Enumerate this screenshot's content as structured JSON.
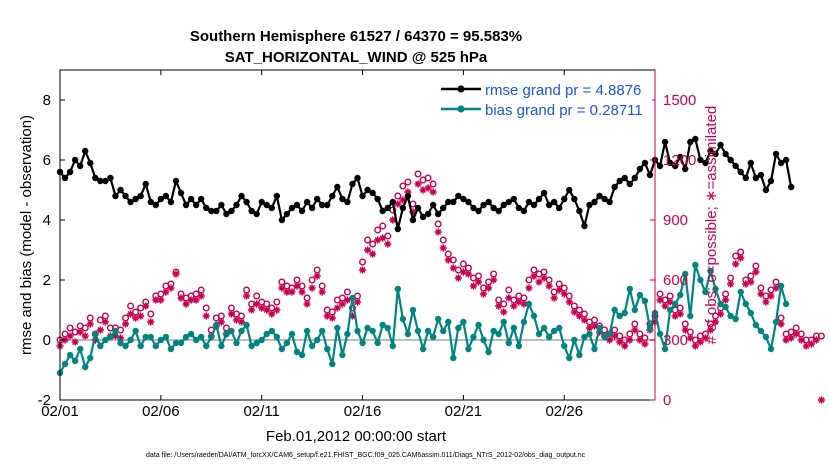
{
  "chart_data": {
    "type": "line",
    "title_line1": "Southern Hemisphere 61527 / 64370 = 95.583%",
    "title_line2": "SAT_HORIZONTAL_WIND @ 525 hPa",
    "xlabel": "Feb.01,2012 00:00:00 start",
    "ylabel_left": "rmse and bias (model - observation)",
    "ylabel_right": "# of obs: o=possible; ∗=assimilated",
    "xlim": [
      0,
      29.5
    ],
    "ylim_left": [
      -2,
      9
    ],
    "ylim_right": [
      0,
      1650
    ],
    "x_ticks": [
      {
        "v": 0,
        "label": "02/01"
      },
      {
        "v": 5,
        "label": "02/06"
      },
      {
        "v": 10,
        "label": "02/11"
      },
      {
        "v": 15,
        "label": "02/16"
      },
      {
        "v": 20,
        "label": "02/21"
      },
      {
        "v": 25,
        "label": "02/26"
      }
    ],
    "yticks_left": [
      {
        "v": -2,
        "label": "-2"
      },
      {
        "v": 0,
        "label": "0"
      },
      {
        "v": 2,
        "label": "2"
      },
      {
        "v": 4,
        "label": "4"
      },
      {
        "v": 6,
        "label": "6"
      },
      {
        "v": 8,
        "label": "8"
      }
    ],
    "yticks_right": [
      {
        "v": 0,
        "label": "0"
      },
      {
        "v": 300,
        "label": "300"
      },
      {
        "v": 600,
        "label": "600"
      },
      {
        "v": 900,
        "label": "900"
      },
      {
        "v": 1200,
        "label": "1200"
      },
      {
        "v": 1500,
        "label": "1500"
      }
    ],
    "zero_line": 0,
    "colors": {
      "rmse": "#000000",
      "bias": "#00847f",
      "obs": "#c8004e",
      "legend_text": "#1a55e0",
      "zero": "#bcbcbc"
    },
    "series": [
      {
        "name": "rmse grand pr = 4.8876",
        "axis": "left",
        "x_start": 0,
        "x_step": 0.25,
        "values": [
          5.6,
          5.4,
          5.6,
          6.0,
          5.8,
          6.3,
          5.9,
          5.4,
          5.3,
          5.3,
          5.4,
          4.8,
          5.0,
          4.8,
          4.6,
          4.7,
          4.8,
          5.2,
          4.6,
          4.5,
          4.7,
          4.8,
          4.6,
          5.3,
          4.9,
          4.5,
          4.7,
          4.5,
          4.7,
          4.4,
          4.3,
          4.3,
          4.5,
          4.2,
          4.3,
          4.5,
          4.8,
          4.6,
          4.3,
          4.2,
          4.6,
          4.5,
          4.4,
          4.8,
          4.0,
          4.2,
          4.4,
          4.5,
          4.3,
          4.6,
          4.4,
          4.7,
          4.5,
          4.5,
          4.8,
          5.1,
          4.7,
          4.6,
          5.2,
          5.4,
          4.8,
          5.0,
          4.9,
          4.7,
          4.3,
          4.4,
          4.6,
          3.7,
          4.4,
          4.8,
          4.0,
          4.4,
          4.1,
          4.2,
          4.5,
          4.2,
          4.4,
          4.6,
          4.6,
          4.8,
          4.7,
          4.6,
          4.4,
          4.3,
          4.5,
          4.6,
          4.4,
          4.3,
          4.5,
          4.6,
          4.7,
          4.4,
          4.3,
          4.6,
          4.5,
          4.7,
          4.9,
          4.5,
          4.6,
          4.4,
          4.7,
          5.0,
          4.7,
          4.3,
          3.8,
          4.5,
          4.6,
          4.8,
          4.7,
          4.6,
          5.1,
          5.3,
          5.4,
          5.2,
          5.4,
          5.7,
          5.9,
          5.5,
          6.0,
          5.8,
          6.6,
          5.9,
          5.8,
          6.1,
          5.7,
          6.6,
          6.7,
          6.0,
          5.9,
          6.3,
          6.2,
          6.5,
          6.2,
          6.0,
          5.8,
          5.6,
          5.4,
          5.9,
          5.4,
          5.5,
          5.0,
          5.3,
          6.2,
          5.9,
          6.0,
          5.1
        ]
      },
      {
        "name": "bias grand pr = 0.28711",
        "axis": "left",
        "x_start": 0,
        "x_step": 0.25,
        "values": [
          -1.1,
          -0.8,
          -0.5,
          -0.7,
          -0.3,
          -0.9,
          -0.6,
          0.2,
          -0.2,
          0.0,
          0.1,
          0.3,
          -0.1,
          -0.2,
          0.0,
          0.3,
          -0.2,
          0.1,
          0.1,
          -0.2,
          0.0,
          0.1,
          -0.3,
          -0.1,
          -0.1,
          0.1,
          0.2,
          0.0,
          0.1,
          -0.2,
          0.1,
          0.5,
          -0.2,
          0.2,
          0.3,
          -0.1,
          0.3,
          0.5,
          -0.2,
          -0.1,
          0.0,
          0.2,
          0.3,
          0.1,
          -0.3,
          -0.1,
          0.2,
          -0.4,
          -0.5,
          0.3,
          -0.2,
          0.0,
          0.3,
          -0.3,
          -0.8,
          0.4,
          -0.5,
          0.2,
          1.4,
          0.3,
          -0.1,
          0.4,
          0.3,
          -0.1,
          0.5,
          0.4,
          -0.2,
          1.7,
          0.7,
          0.2,
          1.0,
          0.3,
          -0.3,
          0.3,
          0.1,
          0.7,
          0.3,
          0.6,
          -0.6,
          0.4,
          0.6,
          -0.3,
          0.1,
          0.5,
          0.0,
          -0.4,
          0.3,
          0.2,
          0.6,
          -0.1,
          0.4,
          -0.2,
          0.6,
          1.2,
          0.8,
          0.2,
          0.4,
          0.1,
          0.3,
          0.4,
          -0.2,
          -0.6,
          0.0,
          -0.5,
          0.1,
          0.2,
          -0.3,
          0.4,
          0.1,
          0.2,
          1.0,
          0.8,
          0.9,
          1.7,
          1.0,
          1.5,
          1.3,
          0.4,
          0.9,
          0.2,
          -0.3,
          1.0,
          1.2,
          1.5,
          2.2,
          0.8,
          2.5,
          2.0,
          1.6,
          2.3,
          1.7,
          1.2,
          1.1,
          0.8,
          0.7,
          1.6,
          1.2,
          0.9,
          0.5,
          0.3,
          0.1,
          -0.3,
          0.6,
          1.8,
          1.2
        ]
      },
      {
        "name": "possible",
        "axis": "right",
        "marker": "o",
        "x_start": 0,
        "x_step": 0.25,
        "values": [
          300,
          330,
          360,
          340,
          370,
          360,
          410,
          330,
          400,
          420,
          360,
          360,
          350,
          410,
          470,
          440,
          460,
          490,
          430,
          520,
          530,
          570,
          580,
          640,
          530,
          510,
          520,
          530,
          550,
          460,
          350,
          410,
          420,
          360,
          460,
          430,
          420,
          550,
          480,
          520,
          490,
          480,
          460,
          490,
          590,
          570,
          560,
          600,
          570,
          510,
          600,
          650,
          570,
          450,
          440,
          500,
          510,
          540,
          460,
          520,
          690,
          800,
          780,
          850,
          870,
          820,
          950,
          1020,
          1070,
          1090,
          980,
          1130,
          1100,
          1110,
          1080,
          880,
          800,
          730,
          700,
          650,
          680,
          660,
          610,
          620,
          560,
          590,
          630,
          500,
          480,
          550,
          500,
          520,
          510,
          600,
          650,
          630,
          640,
          600,
          540,
          580,
          560,
          520,
          470,
          450,
          430,
          390,
          400,
          370,
          350,
          330,
          350,
          320,
          300,
          330,
          380,
          330,
          310,
          380,
          420,
          530,
          500,
          520,
          450,
          460,
          380,
          340,
          300,
          320,
          330,
          380,
          420,
          460,
          530,
          610,
          720,
          740,
          600,
          620,
          670,
          560,
          520,
          550,
          590,
          410,
          330,
          340,
          360,
          330,
          300,
          300,
          320,
          320
        ]
      },
      {
        "name": "assimilated",
        "axis": "right",
        "marker": "*",
        "x_start": 0,
        "x_step": 0.25,
        "values": [
          270,
          300,
          320,
          290,
          340,
          320,
          380,
          300,
          350,
          390,
          320,
          320,
          310,
          380,
          430,
          410,
          420,
          470,
          390,
          500,
          500,
          540,
          560,
          630,
          510,
          480,
          500,
          500,
          520,
          420,
          320,
          370,
          390,
          330,
          430,
          400,
          390,
          520,
          450,
          480,
          460,
          450,
          430,
          450,
          560,
          540,
          540,
          570,
          540,
          480,
          560,
          620,
          540,
          420,
          410,
          460,
          480,
          500,
          420,
          490,
          650,
          750,
          730,
          800,
          810,
          780,
          900,
          980,
          1000,
          1040,
          940,
          1080,
          1050,
          1060,
          1040,
          840,
          760,
          700,
          660,
          610,
          640,
          630,
          570,
          590,
          530,
          560,
          600,
          470,
          440,
          510,
          470,
          490,
          480,
          560,
          620,
          590,
          610,
          570,
          510,
          550,
          530,
          490,
          440,
          420,
          400,
          360,
          370,
          340,
          320,
          300,
          320,
          290,
          270,
          300,
          350,
          300,
          280,
          350,
          390,
          500,
          470,
          490,
          420,
          430,
          350,
          310,
          270,
          290,
          310,
          350,
          390,
          430,
          500,
          580,
          680,
          710,
          580,
          590,
          640,
          530,
          490,
          520,
          560,
          380,
          300,
          310,
          330,
          300,
          270,
          280,
          300,
          0
        ]
      }
    ],
    "footer": "data file: /Users/raeder/DAI/ATM_forcXX/CAM6_setup/f.e21.FHIST_BGC.f09_025.CAM6assim.011/Diags_NTrS_2012-02/obs_diag_output.nc"
  }
}
